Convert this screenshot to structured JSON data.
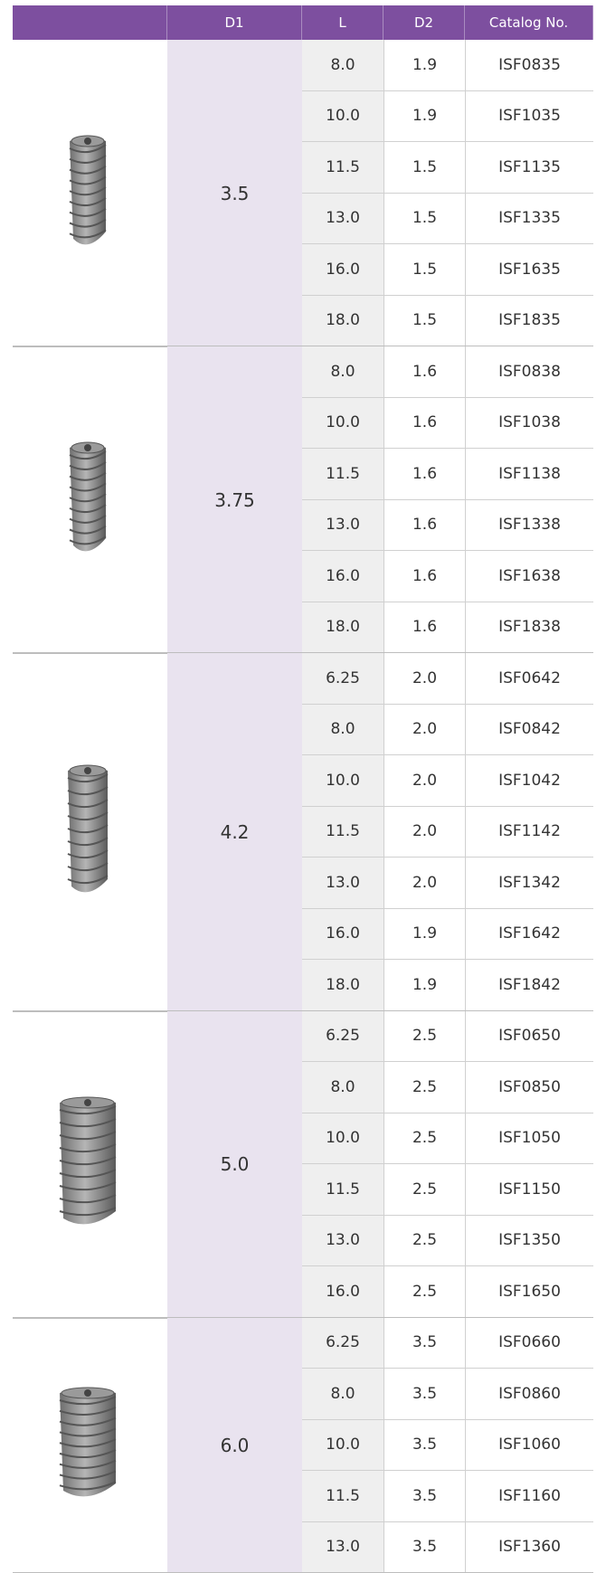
{
  "table": {
    "header": [
      "D1",
      "L",
      "D2",
      "Catalog No."
    ],
    "groups": [
      {
        "d1": "3.5",
        "rows": [
          [
            "8.0",
            "1.9",
            "ISF0835"
          ],
          [
            "10.0",
            "1.9",
            "ISF1035"
          ],
          [
            "11.5",
            "1.5",
            "ISF1135"
          ],
          [
            "13.0",
            "1.5",
            "ISF1335"
          ],
          [
            "16.0",
            "1.5",
            "ISF1635"
          ],
          [
            "18.0",
            "1.5",
            "ISF1835"
          ]
        ]
      },
      {
        "d1": "3.75",
        "rows": [
          [
            "8.0",
            "1.6",
            "ISF0838"
          ],
          [
            "10.0",
            "1.6",
            "ISF1038"
          ],
          [
            "11.5",
            "1.6",
            "ISF1138"
          ],
          [
            "13.0",
            "1.6",
            "ISF1338"
          ],
          [
            "16.0",
            "1.6",
            "ISF1638"
          ],
          [
            "18.0",
            "1.6",
            "ISF1838"
          ]
        ]
      },
      {
        "d1": "4.2",
        "rows": [
          [
            "6.25",
            "2.0",
            "ISF0642"
          ],
          [
            "8.0",
            "2.0",
            "ISF0842"
          ],
          [
            "10.0",
            "2.0",
            "ISF1042"
          ],
          [
            "11.5",
            "2.0",
            "ISF1142"
          ],
          [
            "13.0",
            "2.0",
            "ISF1342"
          ],
          [
            "16.0",
            "1.9",
            "ISF1642"
          ],
          [
            "18.0",
            "1.9",
            "ISF1842"
          ]
        ]
      },
      {
        "d1": "5.0",
        "rows": [
          [
            "6.25",
            "2.5",
            "ISF0650"
          ],
          [
            "8.0",
            "2.5",
            "ISF0850"
          ],
          [
            "10.0",
            "2.5",
            "ISF1050"
          ],
          [
            "11.5",
            "2.5",
            "ISF1150"
          ],
          [
            "13.0",
            "2.5",
            "ISF1350"
          ],
          [
            "16.0",
            "2.5",
            "ISF1650"
          ]
        ]
      },
      {
        "d1": "6.0",
        "rows": [
          [
            "6.25",
            "3.5",
            "ISF0660"
          ],
          [
            "8.0",
            "3.5",
            "ISF0860"
          ],
          [
            "10.0",
            "3.5",
            "ISF1060"
          ],
          [
            "11.5",
            "3.5",
            "ISF1160"
          ],
          [
            "13.0",
            "3.5",
            "ISF1360"
          ]
        ]
      }
    ]
  }
}
